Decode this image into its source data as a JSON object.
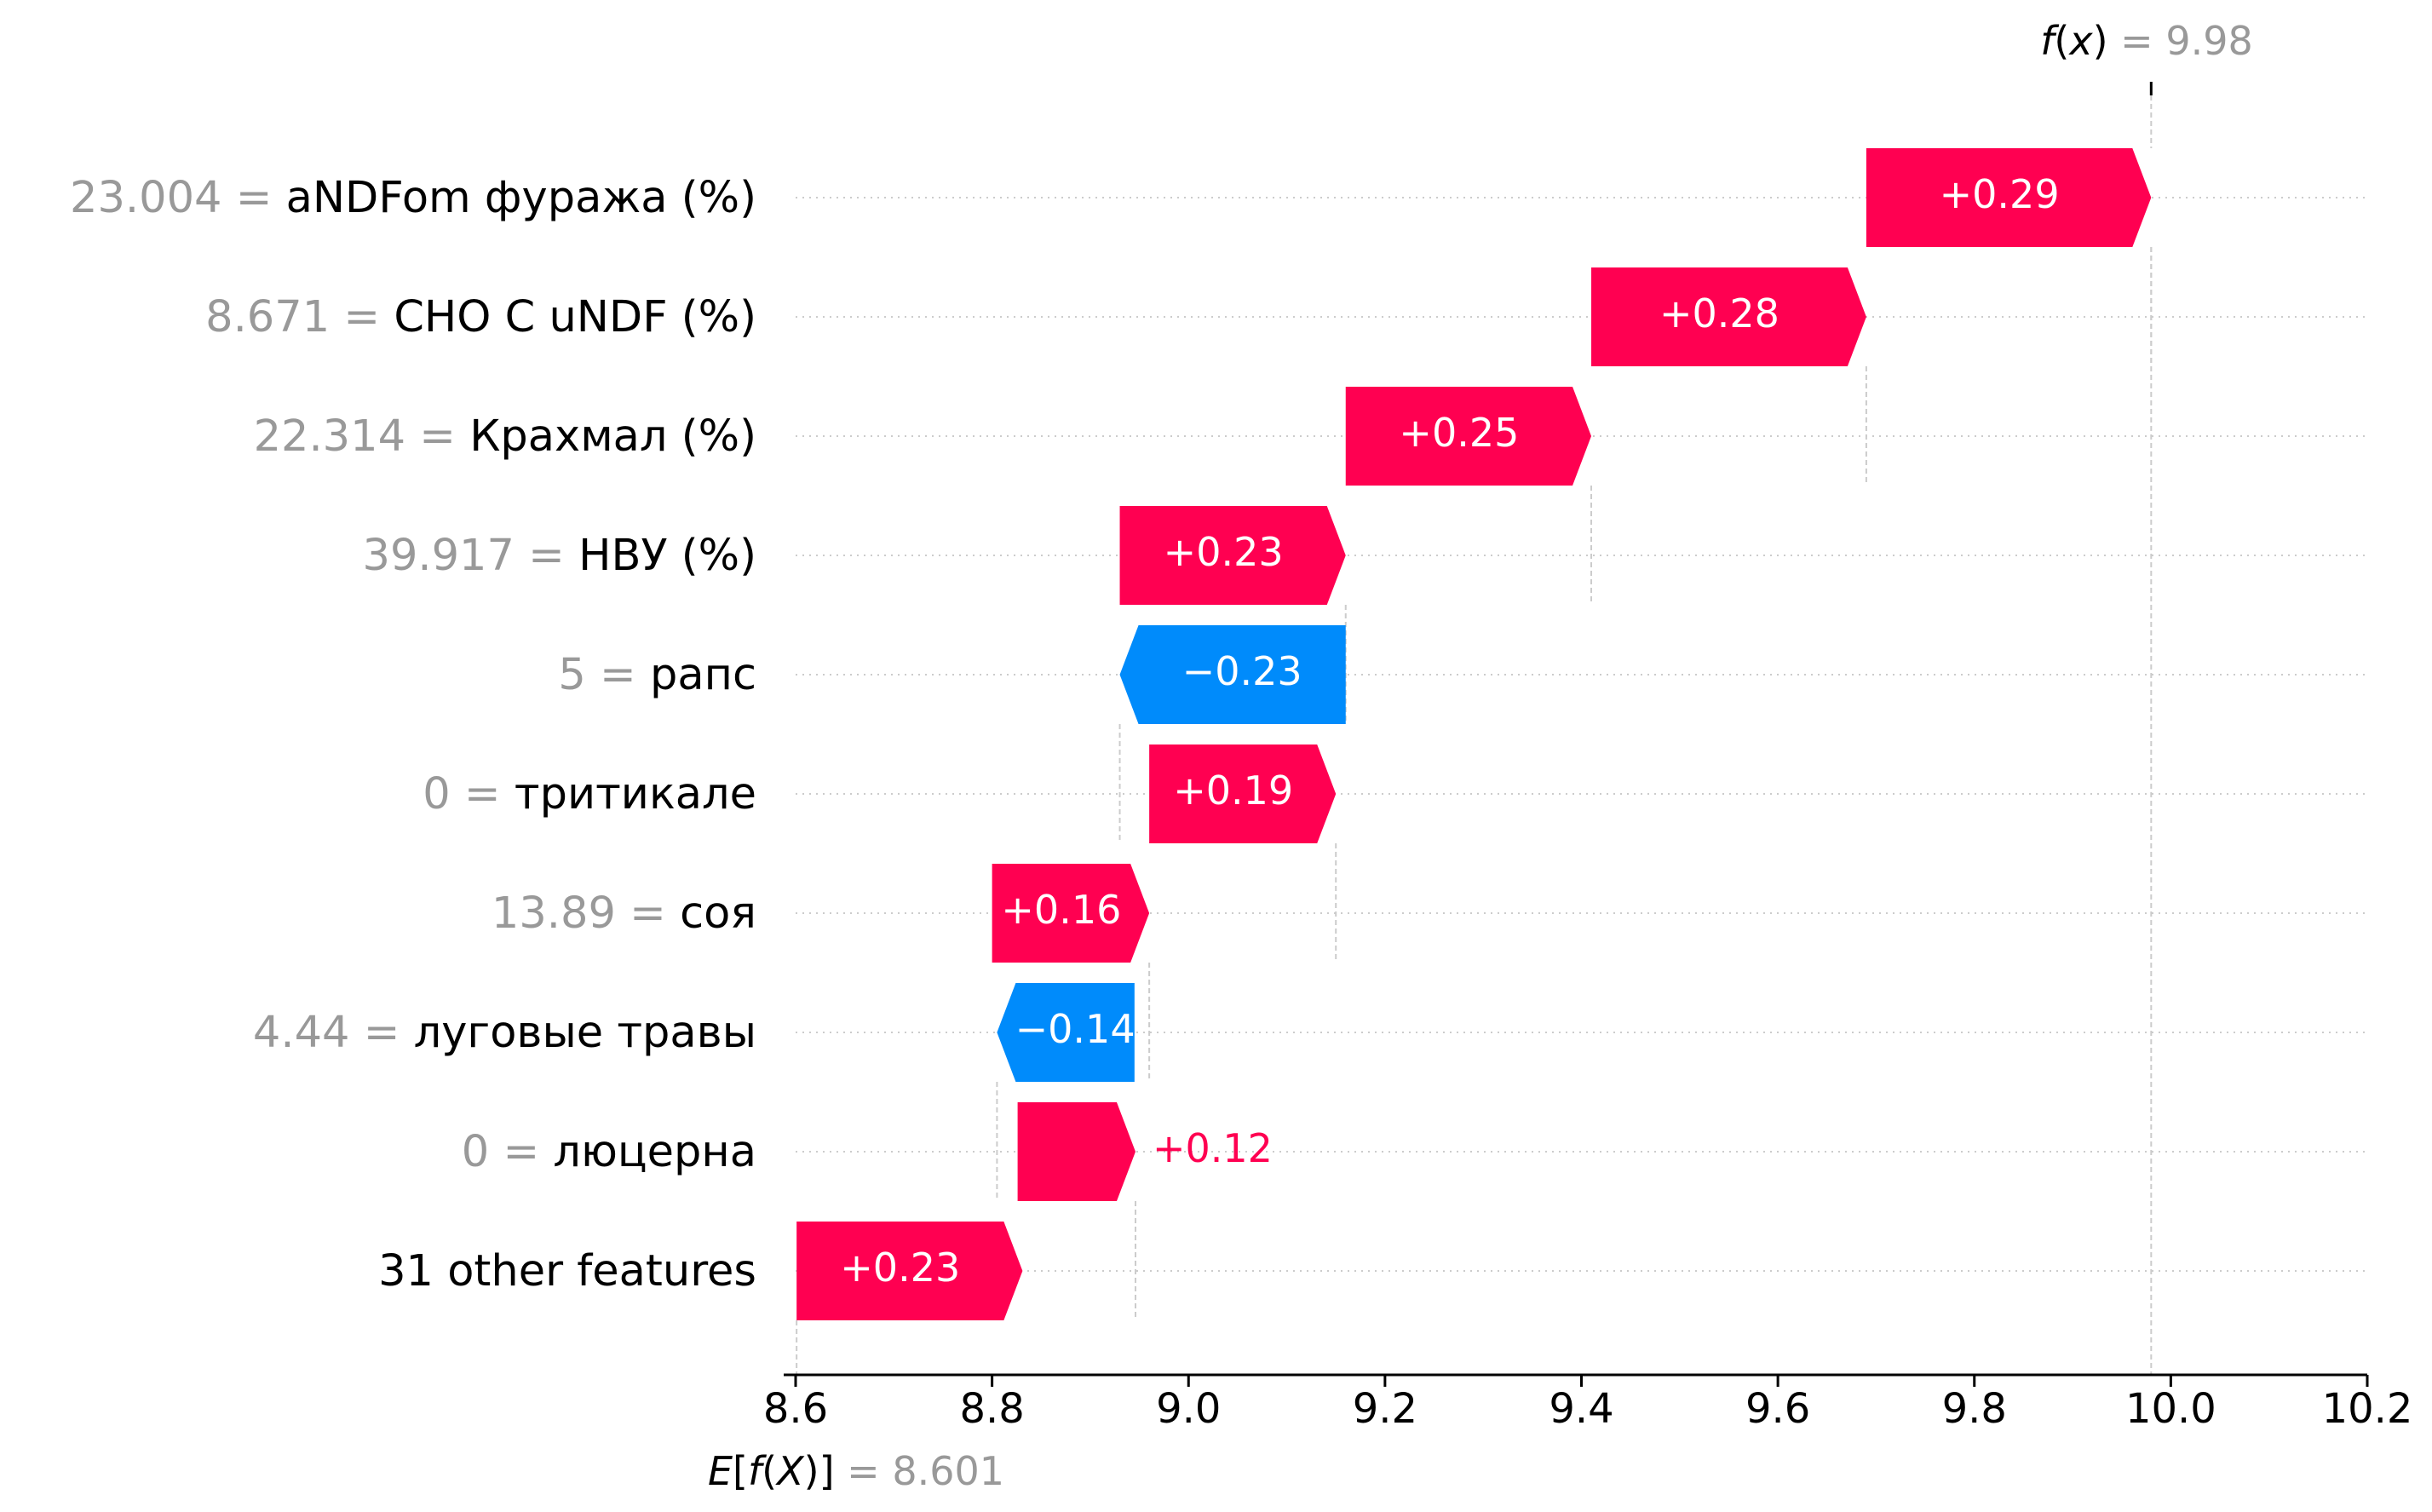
{
  "chart_data": {
    "type": "waterfall",
    "fx": {
      "label": "f(x)",
      "value_text": "9.98",
      "value": 9.98
    },
    "base": {
      "label": "E[f(X)]",
      "value_text": "8.601",
      "value": 8.601
    },
    "xlim": [
      8.6,
      10.2
    ],
    "xticks": [
      "8.6",
      "8.8",
      "9.0",
      "9.2",
      "9.4",
      "9.6",
      "9.8",
      "10.0",
      "10.2"
    ],
    "features": [
      {
        "value": "23.004",
        "name": "aNDFom фуража (%)",
        "contribution": 0.29,
        "label": "+0.29",
        "start": 9.69
      },
      {
        "value": "8.671",
        "name": "CHO C uNDF (%)",
        "contribution": 0.28,
        "label": "+0.28",
        "start": 9.41
      },
      {
        "value": "22.314",
        "name": "Крахмал (%)",
        "contribution": 0.25,
        "label": "+0.25",
        "start": 9.16
      },
      {
        "value": "39.917",
        "name": "НВУ (%)",
        "contribution": 0.23,
        "label": "+0.23",
        "start": 8.93
      },
      {
        "value": "5",
        "name": "рапс",
        "contribution": -0.23,
        "label": "−0.23",
        "start": 9.16
      },
      {
        "value": "0",
        "name": "тритикале",
        "contribution": 0.19,
        "label": "+0.19",
        "start": 8.96
      },
      {
        "value": "13.89",
        "name": "соя",
        "contribution": 0.16,
        "label": "+0.16",
        "start": 8.8
      },
      {
        "value": "4.44",
        "name": "луговые травы",
        "contribution": -0.14,
        "label": "−0.14",
        "start": 8.945
      },
      {
        "value": "0",
        "name": "люцерна",
        "contribution": 0.12,
        "label": "+0.12",
        "start": 8.826
      },
      {
        "value": "",
        "name": "31 other features",
        "contribution": 0.23,
        "label": "+0.23",
        "start": 8.601
      }
    ],
    "colors": {
      "positive": "#ff0051",
      "negative": "#008bfb",
      "muted": "#999999",
      "grid": "#cccccc"
    }
  }
}
